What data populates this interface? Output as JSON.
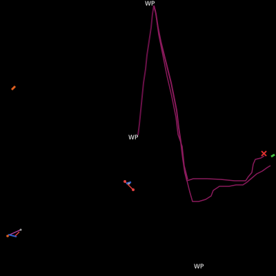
{
  "map": {
    "background_color": "#000000",
    "route_color": "#8a1a5c",
    "route_color_dark": "#6a1048",
    "waypoint_labels": [
      {
        "id": "top",
        "text": "WP"
      },
      {
        "id": "mid",
        "text": "WP"
      },
      {
        "id": "bottom",
        "text": "WP"
      }
    ],
    "markers": {
      "target_x_color": "#e03030",
      "friendly_color": "#40c040",
      "unit_orange_color": "#e06020",
      "unit_blue_color": "#3060d0",
      "unit_red_color": "#e04040",
      "unit_purple_color": "#b040a0",
      "unit_gray_color": "#a0a0a0"
    }
  }
}
